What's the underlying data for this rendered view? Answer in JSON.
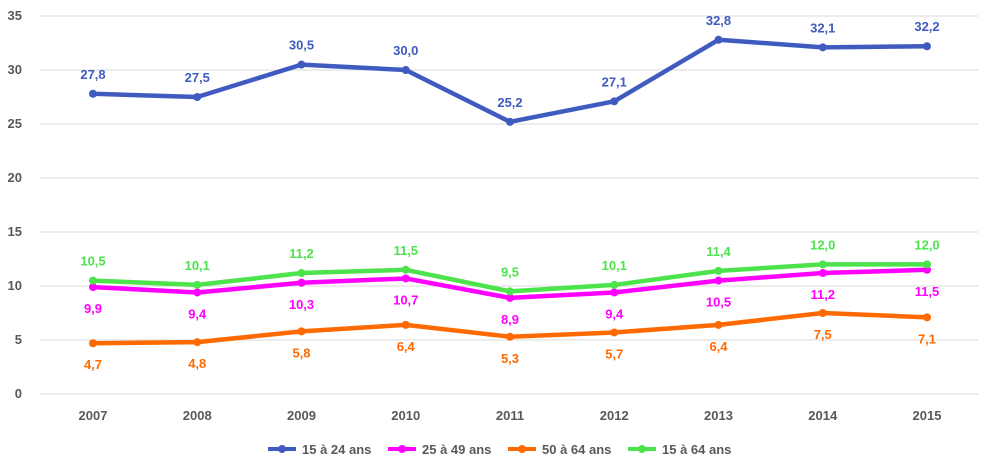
{
  "chart_data": {
    "type": "line",
    "title": "",
    "xlabel": "",
    "ylabel": "",
    "ylim": [
      0,
      35
    ],
    "yticks": [
      "0",
      "5",
      "10",
      "15",
      "20",
      "25",
      "30",
      "35"
    ],
    "grid": true,
    "legend_position": "bottom",
    "categories": [
      "2007",
      "2008",
      "2009",
      "2010",
      "2011",
      "2012",
      "2013",
      "2014",
      "2015"
    ],
    "series": [
      {
        "name": "15 à 24 ans",
        "color": "#3f5bbf",
        "values": [
          27.8,
          27.5,
          30.5,
          30.0,
          25.2,
          27.1,
          32.8,
          32.1,
          32.2
        ],
        "labels": [
          "27,8",
          "27,5",
          "30,5",
          "30,0",
          "25,2",
          "27,1",
          "32,8",
          "32,1",
          "32,2"
        ],
        "label_position": "above"
      },
      {
        "name": "25 à 49 ans",
        "color": "#ff00ff",
        "values": [
          9.9,
          9.4,
          10.3,
          10.7,
          8.9,
          9.4,
          10.5,
          11.2,
          11.5
        ],
        "labels": [
          "9,9",
          "9,4",
          "10,3",
          "10,7",
          "8,9",
          "9,4",
          "10,5",
          "11,2",
          "11,5"
        ],
        "label_position": "below"
      },
      {
        "name": "50 à 64 ans",
        "color": "#ff6a00",
        "values": [
          4.7,
          4.8,
          5.8,
          6.4,
          5.3,
          5.7,
          6.4,
          7.5,
          7.1
        ],
        "labels": [
          "4,7",
          "4,8",
          "5,8",
          "6,4",
          "5,3",
          "5,7",
          "6,4",
          "7,5",
          "7,1"
        ],
        "label_position": "below"
      },
      {
        "name": "15 à 64 ans",
        "color": "#4ce34c",
        "values": [
          10.5,
          10.1,
          11.2,
          11.5,
          9.5,
          10.1,
          11.4,
          12.0,
          12.0
        ],
        "labels": [
          "10,5",
          "10,1",
          "11,2",
          "11,5",
          "9,5",
          "10,1",
          "11,4",
          "12,0",
          "12,0"
        ],
        "label_position": "above"
      }
    ]
  }
}
